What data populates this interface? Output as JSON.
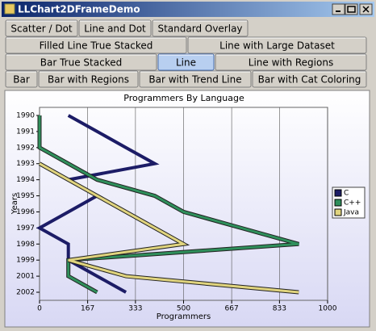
{
  "window": {
    "title": "LLChart2DFrameDemo"
  },
  "tabs": {
    "rows": [
      [
        "Scatter / Dot",
        "Line and Dot",
        "Standard Overlay"
      ],
      [
        "Filled Line True Stacked",
        "Line with Large Dataset"
      ],
      [
        "Bar True Stacked",
        "Line",
        "Line with Regions"
      ],
      [
        "Bar",
        "Bar with Regions",
        "Bar with Trend Line",
        "Bar with Cat Coloring"
      ]
    ],
    "selected": "Line"
  },
  "chart_data": {
    "type": "line",
    "orientation": "horizontal",
    "title": "Programmers By Language",
    "x_label": "Programmers",
    "y_label": "Years",
    "categories": [
      "1990",
      "1991",
      "1992",
      "1993",
      "1994",
      "1995",
      "1996",
      "1997",
      "1998",
      "1999",
      "2001",
      "2002"
    ],
    "series": [
      {
        "name": "C",
        "color": "#1c1c66",
        "values": [
          100,
          200,
          300,
          400,
          100,
          200,
          100,
          0,
          100,
          100,
          200,
          300
        ]
      },
      {
        "name": "C++",
        "color": "#2f8f5b",
        "values": [
          0,
          0,
          0,
          100,
          200,
          400,
          500,
          700,
          900,
          100,
          100,
          200
        ]
      },
      {
        "name": "Java",
        "color": "#e0d47e",
        "values": [
          null,
          null,
          null,
          0,
          100,
          200,
          300,
          400,
          500,
          100,
          300,
          900
        ]
      }
    ],
    "xlim": [
      0,
      1000
    ],
    "xticks": [
      0,
      167,
      333,
      500,
      667,
      833,
      1000
    ],
    "grid": true,
    "legend": "right"
  }
}
